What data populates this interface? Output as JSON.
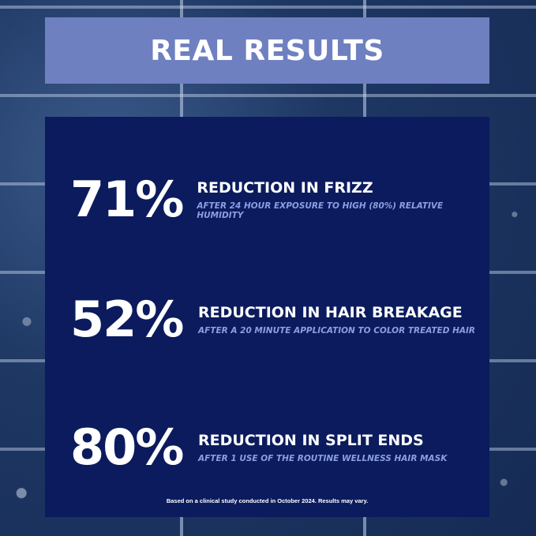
{
  "header": {
    "title": "REAL RESULTS"
  },
  "stats": [
    {
      "value": "71%",
      "title": "REDUCTION IN FRIZZ",
      "detail": "AFTER 24 HOUR EXPOSURE TO HIGH (80%) RELATIVE HUMIDITY"
    },
    {
      "value": "52%",
      "title": "REDUCTION IN HAIR BREAKAGE",
      "detail": "AFTER A 20 MINUTE APPLICATION TO COLOR TREATED HAIR"
    },
    {
      "value": "80%",
      "title": "REDUCTION IN SPLIT ENDS",
      "detail": "AFTER 1 USE OF THE ROUTINE WELLNESS HAIR MASK"
    }
  ],
  "footnote": "Based on a clinical study conducted in October 2024. Results may vary.",
  "colors": {
    "header_band": "#6f80c0",
    "panel": "#0b1b5e",
    "detail_text": "#8c9fe2"
  }
}
